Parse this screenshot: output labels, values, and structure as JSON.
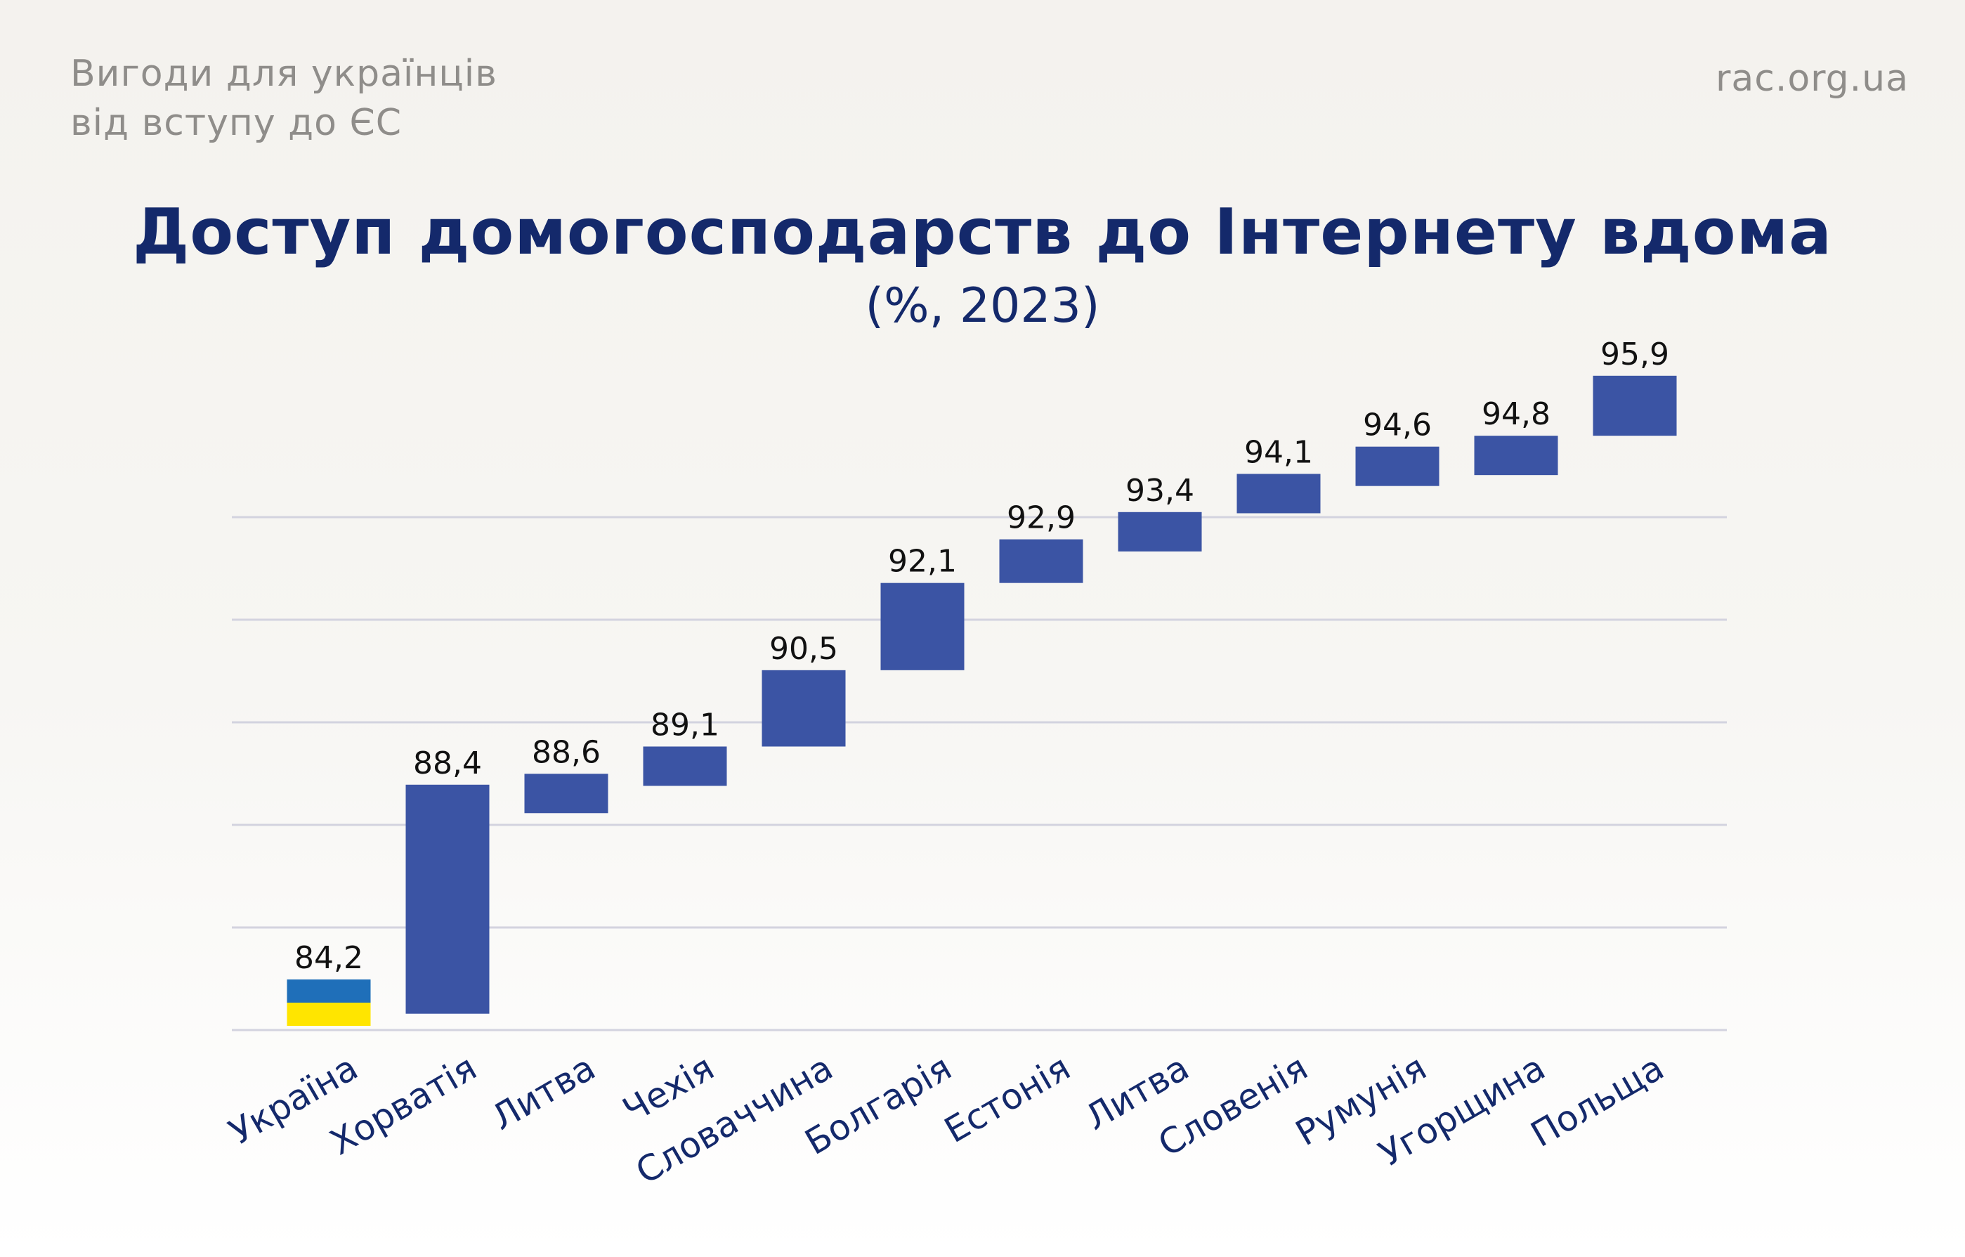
{
  "header": {
    "subtitle_line1": "Вигоди для українців",
    "subtitle_line2": "від вступу до ЄС",
    "site": "rac.org.ua"
  },
  "chart_data": {
    "type": "bar",
    "title": "Доступ домогосподарств до Інтернету вдома",
    "subtitle": "(%, 2023)",
    "categories": [
      "Україна",
      "Хорватія",
      "Литва",
      "Чехія",
      "Словаччина",
      "Болгарія",
      "Естонія",
      "Литва",
      "Словенія",
      "Румунія",
      "Угорщина",
      "Польща"
    ],
    "values": [
      84.2,
      88.4,
      88.6,
      89.1,
      90.5,
      92.1,
      92.9,
      93.4,
      94.1,
      94.6,
      94.8,
      95.9
    ],
    "value_labels": [
      "84,2",
      "88,4",
      "88,6",
      "89,1",
      "90,5",
      "92,1",
      "92,9",
      "93,4",
      "94,1",
      "94,6",
      "94,8",
      "95,9"
    ],
    "xlabel": "",
    "ylabel": "",
    "grid": true,
    "colors": {
      "bar": "#3b54a4",
      "flag_blue": "#1f6fb9",
      "flag_yellow": "#ffe500",
      "grid": "#d3d3df",
      "label": "#14296b"
    }
  }
}
